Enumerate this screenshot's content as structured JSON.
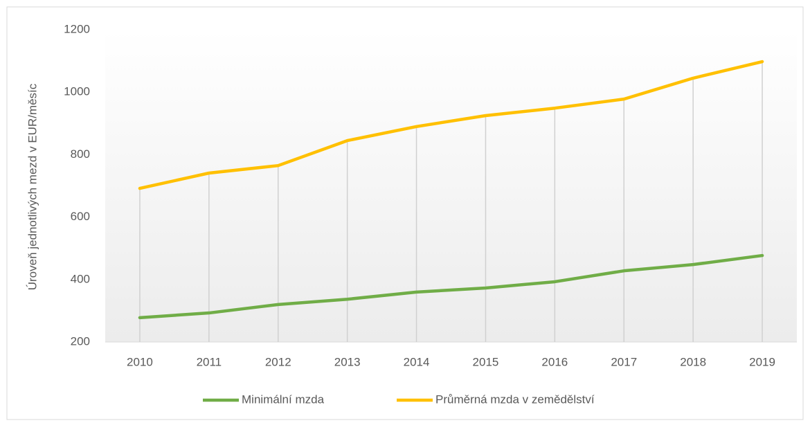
{
  "chart_data": {
    "type": "line",
    "y_label": "Úroveň jednotlivých mezd v EUR/měsíc",
    "categories": [
      "2010",
      "2011",
      "2012",
      "2013",
      "2014",
      "2015",
      "2016",
      "2017",
      "2018",
      "2019"
    ],
    "series": [
      {
        "name": "Minimální mzda",
        "color": "#70ad47",
        "values": [
          278,
          293,
          320,
          337,
          360,
          373,
          393,
          428,
          448,
          477
        ]
      },
      {
        "name": "Průměrná mzda v zemědělství",
        "color": "#ffc000",
        "values": [
          692,
          741,
          765,
          845,
          890,
          925,
          949,
          978,
          1045,
          1098
        ]
      }
    ],
    "ylim": [
      200,
      1200
    ],
    "yticks": [
      200,
      400,
      600,
      800,
      1000,
      1200
    ],
    "drop_lines": true,
    "legend": "bottom"
  }
}
